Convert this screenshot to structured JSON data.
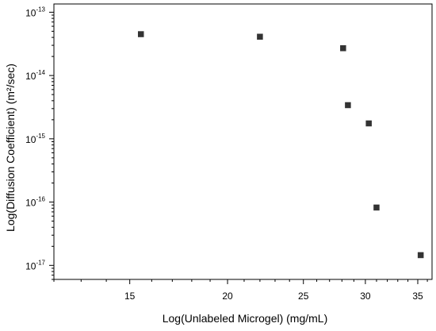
{
  "chart_data": {
    "type": "scatter",
    "title": "",
    "xlabel": "Log(Unlabeled Microgel) (mg/mL)",
    "ylabel": "Log(Diffusion Coefficient) (m²/sec)",
    "xscale": "log",
    "yscale": "log",
    "xlim": [
      12,
      36.5
    ],
    "ylim": [
      6e-18,
      1.35e-13
    ],
    "x_ticks": [
      15,
      20,
      25,
      30,
      35
    ],
    "x_tick_labels": [
      "15",
      "20",
      "25",
      "30",
      "35"
    ],
    "y_ticks": [
      1e-17,
      1e-16,
      1e-15,
      1e-14,
      1e-13
    ],
    "y_tick_labels": [
      {
        "base": "10",
        "exp": "-17"
      },
      {
        "base": "10",
        "exp": "-16"
      },
      {
        "base": "10",
        "exp": "-15"
      },
      {
        "base": "10",
        "exp": "-14"
      },
      {
        "base": "10",
        "exp": "-13"
      }
    ],
    "grid": false,
    "legend": false,
    "series": [
      {
        "marker": "square",
        "color": "#333333",
        "points": [
          {
            "x": 15.5,
            "y": 4.5e-14
          },
          {
            "x": 22.0,
            "y": 4.1e-14
          },
          {
            "x": 28.1,
            "y": 2.7e-14
          },
          {
            "x": 28.5,
            "y": 3.4e-15
          },
          {
            "x": 30.3,
            "y": 1.75e-15
          },
          {
            "x": 31.0,
            "y": 8.2e-17
          },
          {
            "x": 35.3,
            "y": 1.45e-17
          }
        ]
      }
    ]
  }
}
